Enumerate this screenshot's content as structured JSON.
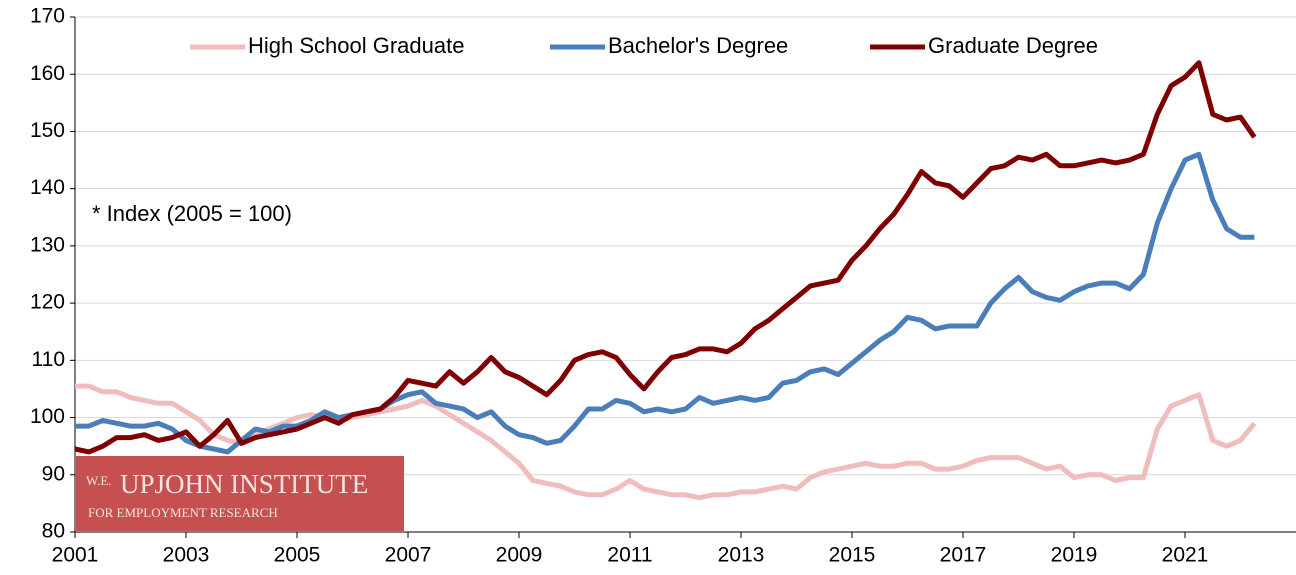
{
  "chart_data": {
    "type": "line",
    "annotation": "* Index (2005 = 100)",
    "logo": {
      "prefix": "W.E.",
      "name": "UPJOHN INSTITUTE",
      "subtitle": "FOR EMPLOYMENT RESEARCH"
    },
    "legend": "top",
    "grid": true,
    "xlim": [
      2001,
      2023
    ],
    "xticks": [
      2001,
      2003,
      2005,
      2007,
      2009,
      2011,
      2013,
      2015,
      2017,
      2019,
      2021
    ],
    "ylim": [
      80,
      170
    ],
    "yticks": [
      80,
      90,
      100,
      110,
      120,
      130,
      140,
      150,
      160,
      170
    ],
    "x": [
      2001,
      2001.25,
      2001.5,
      2001.75,
      2002,
      2002.25,
      2002.5,
      2002.75,
      2003,
      2003.25,
      2003.5,
      2003.75,
      2004,
      2004.25,
      2004.5,
      2004.75,
      2005,
      2005.25,
      2005.5,
      2005.75,
      2006,
      2006.25,
      2006.5,
      2006.75,
      2007,
      2007.25,
      2007.5,
      2007.75,
      2008,
      2008.25,
      2008.5,
      2008.75,
      2009,
      2009.25,
      2009.5,
      2009.75,
      2010,
      2010.25,
      2010.5,
      2010.75,
      2011,
      2011.25,
      2011.5,
      2011.75,
      2012,
      2012.25,
      2012.5,
      2012.75,
      2013,
      2013.25,
      2013.5,
      2013.75,
      2014,
      2014.25,
      2014.5,
      2014.75,
      2015,
      2015.25,
      2015.5,
      2015.75,
      2016,
      2016.25,
      2016.5,
      2016.75,
      2017,
      2017.25,
      2017.5,
      2017.75,
      2018,
      2018.25,
      2018.5,
      2018.75,
      2019,
      2019.25,
      2019.5,
      2019.75,
      2020,
      2020.25,
      2020.5,
      2020.75,
      2021,
      2021.25,
      2021.5,
      2021.75,
      2022,
      2022.25
    ],
    "series": [
      {
        "name": "High School Graduate",
        "color": "#f0bcbc",
        "values": [
          105.5,
          105.5,
          104.5,
          104.5,
          103.5,
          103,
          102.5,
          102.5,
          101,
          99.5,
          97,
          96,
          95.5,
          97,
          98,
          99,
          100,
          100.5,
          100,
          99.5,
          100,
          100.5,
          101,
          101.5,
          102,
          103,
          102,
          100.5,
          99,
          97.5,
          96,
          94,
          92,
          89,
          88.5,
          88,
          87,
          86.5,
          86.5,
          87.5,
          89,
          87.5,
          87,
          86.5,
          86.5,
          86,
          86.5,
          86.5,
          87,
          87,
          87.5,
          88,
          87.5,
          89.5,
          90.5,
          91,
          91.5,
          92,
          91.5,
          91.5,
          92,
          92,
          91,
          91,
          91.5,
          92.5,
          93,
          93,
          93,
          92,
          91,
          91.5,
          89.5,
          90,
          90,
          89,
          89.5,
          89.5,
          98,
          102,
          103,
          104,
          96,
          95,
          96,
          99
        ]
      },
      {
        "name": "Bachelor's Degree",
        "color": "#4a7ebb",
        "values": [
          98.5,
          98.5,
          99.5,
          99,
          98.5,
          98.5,
          99,
          98,
          96,
          95,
          94.5,
          94,
          96,
          98,
          97.5,
          98.5,
          98.5,
          99.5,
          101,
          100,
          100.5,
          101,
          101.5,
          103,
          104,
          104.5,
          102.5,
          102,
          101.5,
          100,
          101,
          98.5,
          97,
          96.5,
          95.5,
          96,
          98.5,
          101.5,
          101.5,
          103,
          102.5,
          101,
          101.5,
          101,
          101.5,
          103.5,
          102.5,
          103,
          103.5,
          103,
          103.5,
          106,
          106.5,
          108,
          108.5,
          107.5,
          109.5,
          111.5,
          113.5,
          115,
          117.5,
          117,
          115.5,
          116,
          116,
          116,
          120,
          122.5,
          124.5,
          122,
          121,
          120.5,
          122,
          123,
          123.5,
          123.5,
          122.5,
          125,
          134,
          140,
          145,
          146,
          138,
          133,
          131.5,
          131.5
        ]
      },
      {
        "name": "Graduate Degree",
        "color": "#7f0000",
        "values": [
          94.5,
          94,
          95,
          96.5,
          96.5,
          97,
          96,
          96.5,
          97.5,
          95,
          97,
          99.5,
          95.5,
          96.5,
          97,
          97.5,
          98,
          99,
          100,
          99,
          100.5,
          101,
          101.5,
          103.5,
          106.5,
          106,
          105.5,
          108,
          106,
          108,
          110.5,
          108,
          107,
          105.5,
          104,
          106.5,
          110,
          111,
          111.5,
          110.5,
          107.5,
          105,
          108,
          110.5,
          111,
          112,
          112,
          111.5,
          113,
          115.5,
          117,
          119,
          121,
          123,
          123.5,
          124,
          127.5,
          130,
          133,
          135.5,
          139,
          143,
          141,
          140.5,
          138.5,
          141,
          143.5,
          144,
          145.5,
          145,
          146,
          144,
          144,
          144.5,
          145,
          144.5,
          145,
          146,
          153,
          158,
          159.5,
          162,
          153,
          152,
          152.5,
          149
        ]
      }
    ]
  }
}
